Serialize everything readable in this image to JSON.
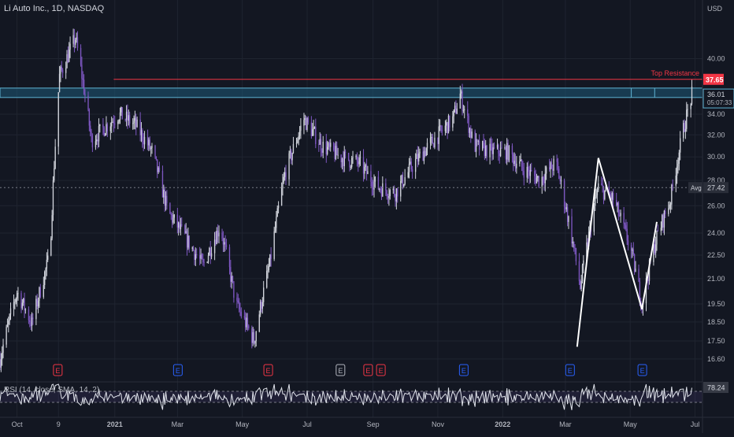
{
  "symbol": {
    "title": "Li Auto Inc., 1D, NASDAQ"
  },
  "price_axis": {
    "currency": "USD",
    "ticks": [
      "40.00",
      "34.00",
      "32.00",
      "30.00",
      "28.00",
      "26.00",
      "24.00",
      "22.50",
      "21.00",
      "19.50",
      "18.50",
      "17.50",
      "16.60"
    ]
  },
  "time_axis": {
    "ticks": [
      "Oct",
      "9",
      "2021",
      "Mar",
      "May",
      "Jul",
      "Sep",
      "Nov",
      "2022",
      "Mar",
      "May",
      "Jul"
    ]
  },
  "resistance": {
    "label": "Top Resistance",
    "price": "37.65"
  },
  "last_price": {
    "price": "36.01",
    "countdown": "05:07:33"
  },
  "average": {
    "label": "Avg",
    "price": "27.42"
  },
  "rsi": {
    "label": "RSI (14, close, SMA, 14, 2)",
    "value": "78.24"
  },
  "earnings_markers": [
    {
      "label": "E",
      "color": "#f23645"
    },
    {
      "label": "E",
      "color": "#2962ff"
    },
    {
      "label": "E",
      "color": "#f23645"
    },
    {
      "label": "E",
      "color": "#b2b5be"
    },
    {
      "label": "E",
      "color": "#f23645"
    },
    {
      "label": "E",
      "color": "#f23645"
    },
    {
      "label": "E",
      "color": "#2962ff"
    },
    {
      "label": "E",
      "color": "#2962ff"
    },
    {
      "label": "E",
      "color": "#2962ff"
    }
  ],
  "colors": {
    "background": "#131722",
    "up_candle": "#d1d4dc",
    "down_candle": "#7e57c2",
    "resistance_line": "#f23645",
    "zone_fill": "#1e5a78",
    "zone_border": "#5fb3d3",
    "pattern_line": "#ffffff"
  },
  "chart_data": {
    "type": "candlestick",
    "title": "Li Auto Inc., 1D, NASDAQ",
    "y_scale": "log",
    "ylim": [
      15.7,
      47.5
    ],
    "x_range": [
      "2020-09-15",
      "2022-07-08"
    ],
    "series": [
      {
        "x": [
          "2020-09-15",
          "2020-10-01",
          "2020-10-15",
          "2020-11-01",
          "2020-11-10",
          "2020-11-25",
          "2020-12-10",
          "2021-01-05",
          "2021-01-20",
          "2021-02-05",
          "2021-02-20",
          "2021-03-10",
          "2021-03-25",
          "2021-04-10",
          "2021-04-25",
          "2021-05-12",
          "2021-05-27",
          "2021-06-10",
          "2021-06-28",
          "2021-07-15",
          "2021-08-01",
          "2021-08-18",
          "2021-09-05",
          "2021-09-22",
          "2021-10-10",
          "2021-10-28",
          "2021-11-15",
          "2021-11-22",
          "2021-12-05",
          "2021-12-20",
          "2022-01-05",
          "2022-01-20",
          "2022-02-05",
          "2022-02-20",
          "2022-03-05",
          "2022-03-15",
          "2022-04-01",
          "2022-04-15",
          "2022-05-01",
          "2022-05-12",
          "2022-05-25",
          "2022-06-08",
          "2022-06-20",
          "2022-06-28"
        ],
        "close": [
          16.6,
          20.2,
          18.4,
          22.5,
          38.0,
          42.5,
          31.5,
          34.0,
          33.0,
          30.5,
          25.5,
          23.5,
          21.8,
          24.5,
          19.5,
          17.5,
          22.0,
          28.5,
          33.5,
          31.0,
          30.0,
          29.5,
          27.5,
          27.0,
          29.5,
          31.5,
          33.5,
          36.0,
          31.0,
          30.5,
          30.5,
          29.0,
          28.0,
          29.5,
          24.5,
          20.5,
          27.5,
          26.5,
          23.0,
          19.5,
          23.5,
          26.5,
          32.5,
          36.0
        ]
      }
    ],
    "annotations": {
      "horizontal_line": {
        "label": "Top Resistance",
        "y": 37.65
      },
      "resistance_zone": [
        35.7,
        36.7
      ],
      "average_line": {
        "label": "Avg",
        "y": 27.42
      },
      "pattern_points": [
        {
          "x": "2022-03-12",
          "y": 17.2
        },
        {
          "x": "2022-04-01",
          "y": 29.9
        },
        {
          "x": "2022-05-12",
          "y": 19.2
        },
        {
          "x": "2022-05-26",
          "y": 24.8
        }
      ]
    },
    "rsi": {
      "name": "RSI (14, close, SMA, 14, 2)",
      "last": 78.24
    }
  }
}
